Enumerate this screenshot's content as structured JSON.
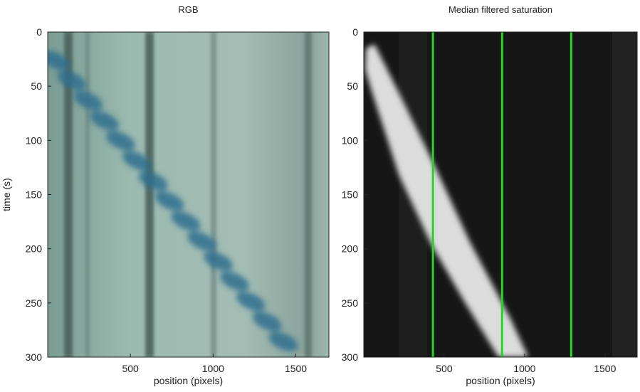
{
  "chart_data": [
    {
      "type": "image",
      "title": "RGB",
      "xlabel": "position (pixels)",
      "ylabel": "time (s)",
      "xlim": [
        0,
        1700
      ],
      "ylim": [
        0,
        300
      ],
      "y_inverted": true,
      "xticks": [
        500,
        1000,
        1500
      ],
      "yticks": [
        0,
        50,
        100,
        150,
        200,
        250,
        300
      ]
    },
    {
      "type": "image",
      "title": "Median filtered saturation",
      "xlabel": "position (pixels)",
      "xlim": [
        0,
        1700
      ],
      "ylim": [
        0,
        300
      ],
      "y_inverted": true,
      "xticks": [
        500,
        1000,
        1500
      ],
      "yticks": [
        0,
        50,
        100,
        150,
        200,
        250,
        300
      ],
      "vlines": {
        "values": [
          430,
          860,
          1290
        ],
        "color": "#22d822"
      }
    }
  ]
}
